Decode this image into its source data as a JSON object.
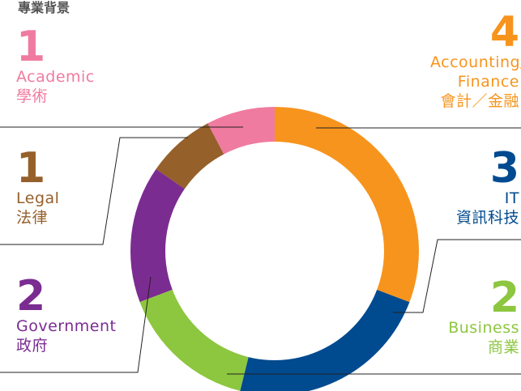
{
  "chart_data": {
    "type": "donut",
    "title": "專業背景",
    "categories": [
      "Accounting/ Finance",
      "IT",
      "Business",
      "Government",
      "Legal",
      "Academic"
    ],
    "categories_zh": [
      "會計／金融",
      "資訊科技",
      "商業",
      "政府",
      "法律",
      "學術"
    ],
    "values": [
      4,
      3,
      2,
      2,
      1,
      1
    ],
    "colors": [
      "#f7941d",
      "#004a8f",
      "#8dc63f",
      "#7b2c91",
      "#96602b",
      "#f07ba0"
    ]
  }
}
